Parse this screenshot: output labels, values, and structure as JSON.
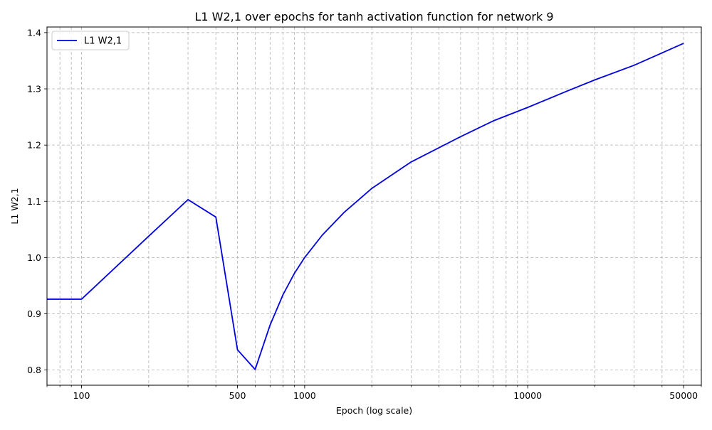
{
  "chart_data": {
    "type": "line",
    "title": "L1 W2,1 over epochs for tanh activation function for network 9",
    "xlabel": "Epoch (log scale)",
    "ylabel": "L1 W2,1",
    "x_scale": "log",
    "xlim": [
      70,
      60000
    ],
    "ylim": [
      0.773,
      1.41
    ],
    "x_ticks": [
      100,
      500,
      1000,
      10000,
      50000
    ],
    "x_tick_labels": [
      "100",
      "500",
      "1000",
      "10000",
      "50000"
    ],
    "y_ticks": [
      0.8,
      0.9,
      1.0,
      1.1,
      1.2,
      1.3,
      1.4
    ],
    "y_tick_labels": [
      "0.8",
      "0.9",
      "1.0",
      "1.1",
      "1.2",
      "1.3",
      "1.4"
    ],
    "grid": true,
    "grid_style": "dashed, major and minor",
    "legend_position": "upper-left",
    "series": [
      {
        "name": "L1 W2,1",
        "color": "#0000e0",
        "x": [
          70,
          100,
          200,
          300,
          400,
          500,
          600,
          700,
          800,
          900,
          1000,
          1200,
          1500,
          2000,
          3000,
          5000,
          7000,
          10000,
          15000,
          20000,
          30000,
          40000,
          50000
        ],
        "y": [
          0.926,
          0.926,
          1.038,
          1.103,
          1.072,
          0.836,
          0.801,
          0.88,
          0.934,
          0.972,
          1.0,
          1.04,
          1.08,
          1.123,
          1.17,
          1.215,
          1.243,
          1.267,
          1.296,
          1.316,
          1.342,
          1.364,
          1.381
        ]
      }
    ]
  }
}
